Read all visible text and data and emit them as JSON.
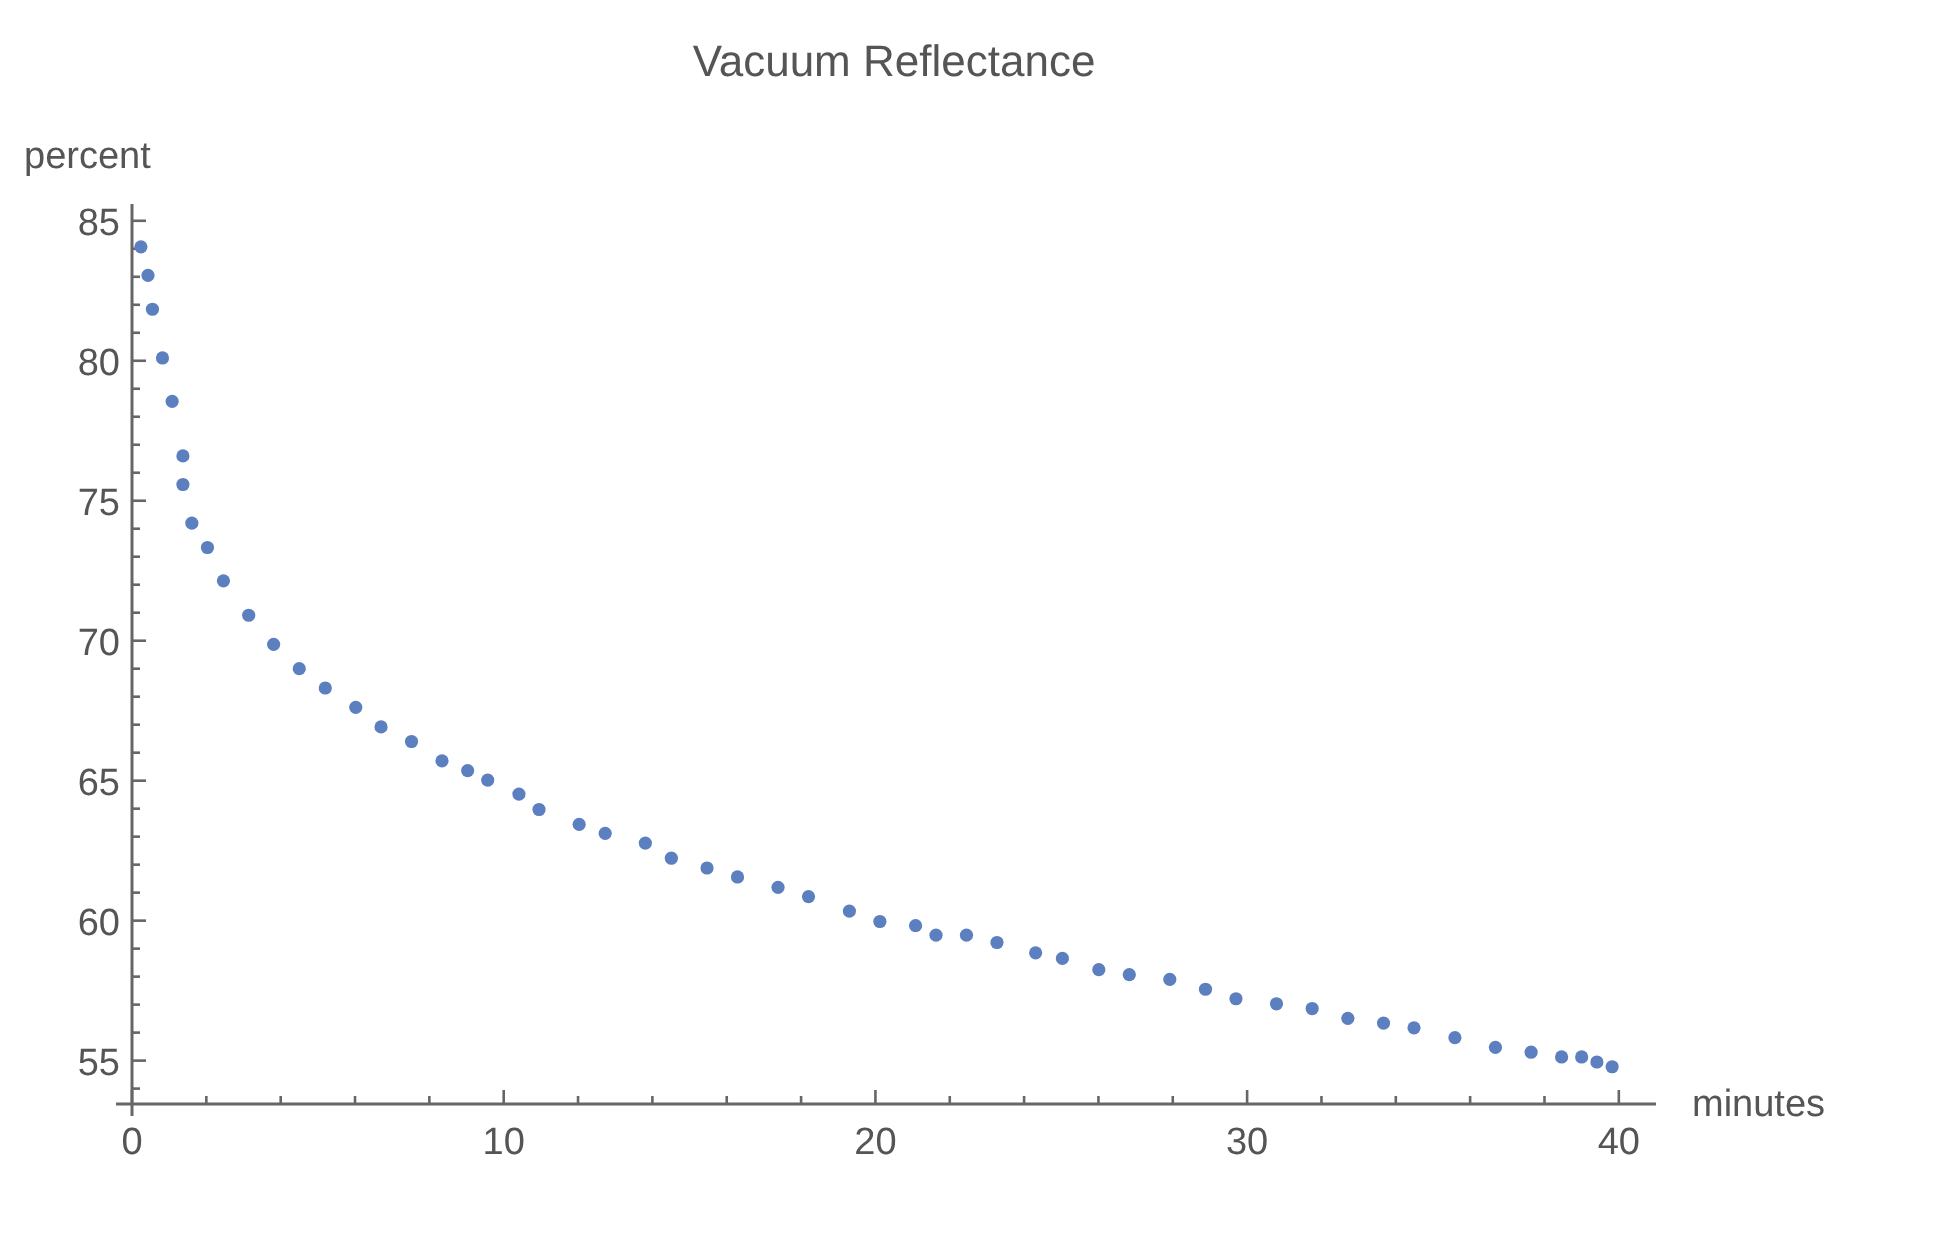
{
  "chart_data": {
    "type": "scatter",
    "title": "Vacuum Reflectance",
    "xlabel": "minutes",
    "ylabel": "percent",
    "marker": "circle",
    "grid": false,
    "xlim": [
      0,
      41
    ],
    "ylim": [
      53.45,
      85.6
    ],
    "xticks": [
      0,
      {
        "value": 2,
        "label": null
      },
      {
        "value": 4,
        "label": null
      },
      {
        "value": 6,
        "label": null
      },
      {
        "value": 8,
        "label": null
      },
      10,
      {
        "value": 12,
        "label": null
      },
      {
        "value": 14,
        "label": null
      },
      {
        "value": 16,
        "label": null
      },
      {
        "value": 18,
        "label": null
      },
      20,
      {
        "value": 22,
        "label": null
      },
      {
        "value": 24,
        "label": null
      },
      {
        "value": 26,
        "label": null
      },
      {
        "value": 28,
        "label": null
      },
      30,
      {
        "value": 32,
        "label": null
      },
      {
        "value": 34,
        "label": null
      },
      {
        "value": 36,
        "label": null
      },
      {
        "value": 38,
        "label": null
      },
      40
    ],
    "yticks": [
      {
        "value": 54,
        "label": null
      },
      55,
      {
        "value": 56,
        "label": null
      },
      {
        "value": 57,
        "label": null
      },
      {
        "value": 58,
        "label": null
      },
      {
        "value": 59,
        "label": null
      },
      60,
      {
        "value": 61,
        "label": null
      },
      {
        "value": 62,
        "label": null
      },
      {
        "value": 63,
        "label": null
      },
      {
        "value": 64,
        "label": null
      },
      65,
      {
        "value": 66,
        "label": null
      },
      {
        "value": 67,
        "label": null
      },
      {
        "value": 68,
        "label": null
      },
      {
        "value": 69,
        "label": null
      },
      70,
      {
        "value": 71,
        "label": null
      },
      {
        "value": 72,
        "label": null
      },
      {
        "value": 73,
        "label": null
      },
      {
        "value": 74,
        "label": null
      },
      75,
      {
        "value": 76,
        "label": null
      },
      {
        "value": 77,
        "label": null
      },
      {
        "value": 78,
        "label": null
      },
      {
        "value": 79,
        "label": null
      },
      80,
      {
        "value": 81,
        "label": null
      },
      {
        "value": 82,
        "label": null
      },
      {
        "value": 83,
        "label": null
      },
      {
        "value": 84,
        "label": null
      },
      85
    ],
    "series": [
      {
        "color": "#5b7fbf",
        "x": [
          0.24,
          0.43,
          0.55,
          0.82,
          1.08,
          1.37,
          1.37,
          1.61,
          2.03,
          2.46,
          3.14,
          3.81,
          4.5,
          5.2,
          6.02,
          6.7,
          7.52,
          8.34,
          9.03,
          9.57,
          10.41,
          10.95,
          12.03,
          12.73,
          13.81,
          14.51,
          15.47,
          16.29,
          17.38,
          18.2,
          19.3,
          20.12,
          21.08,
          21.63,
          22.45,
          23.27,
          24.31,
          25.03,
          26.01,
          26.83,
          27.92,
          28.88,
          29.7,
          30.79,
          31.75,
          32.71,
          33.67,
          34.49,
          35.59,
          36.68,
          37.64,
          38.46,
          39.0,
          39.41,
          39.82
        ],
        "values": [
          84.07,
          83.05,
          81.84,
          80.1,
          78.55,
          76.6,
          75.58,
          74.2,
          73.33,
          72.14,
          70.91,
          69.87,
          69.0,
          68.31,
          67.62,
          66.92,
          66.4,
          65.71,
          65.36,
          65.02,
          64.52,
          63.97,
          63.44,
          63.12,
          62.77,
          62.23,
          61.88,
          61.56,
          61.19,
          60.86,
          60.34,
          59.97,
          59.82,
          59.48,
          59.48,
          59.22,
          58.85,
          58.65,
          58.25,
          58.07,
          57.9,
          57.55,
          57.21,
          57.03,
          56.86,
          56.51,
          56.34,
          56.17,
          55.82,
          55.47,
          55.3,
          55.13,
          55.13,
          54.95,
          54.78
        ]
      }
    ]
  }
}
